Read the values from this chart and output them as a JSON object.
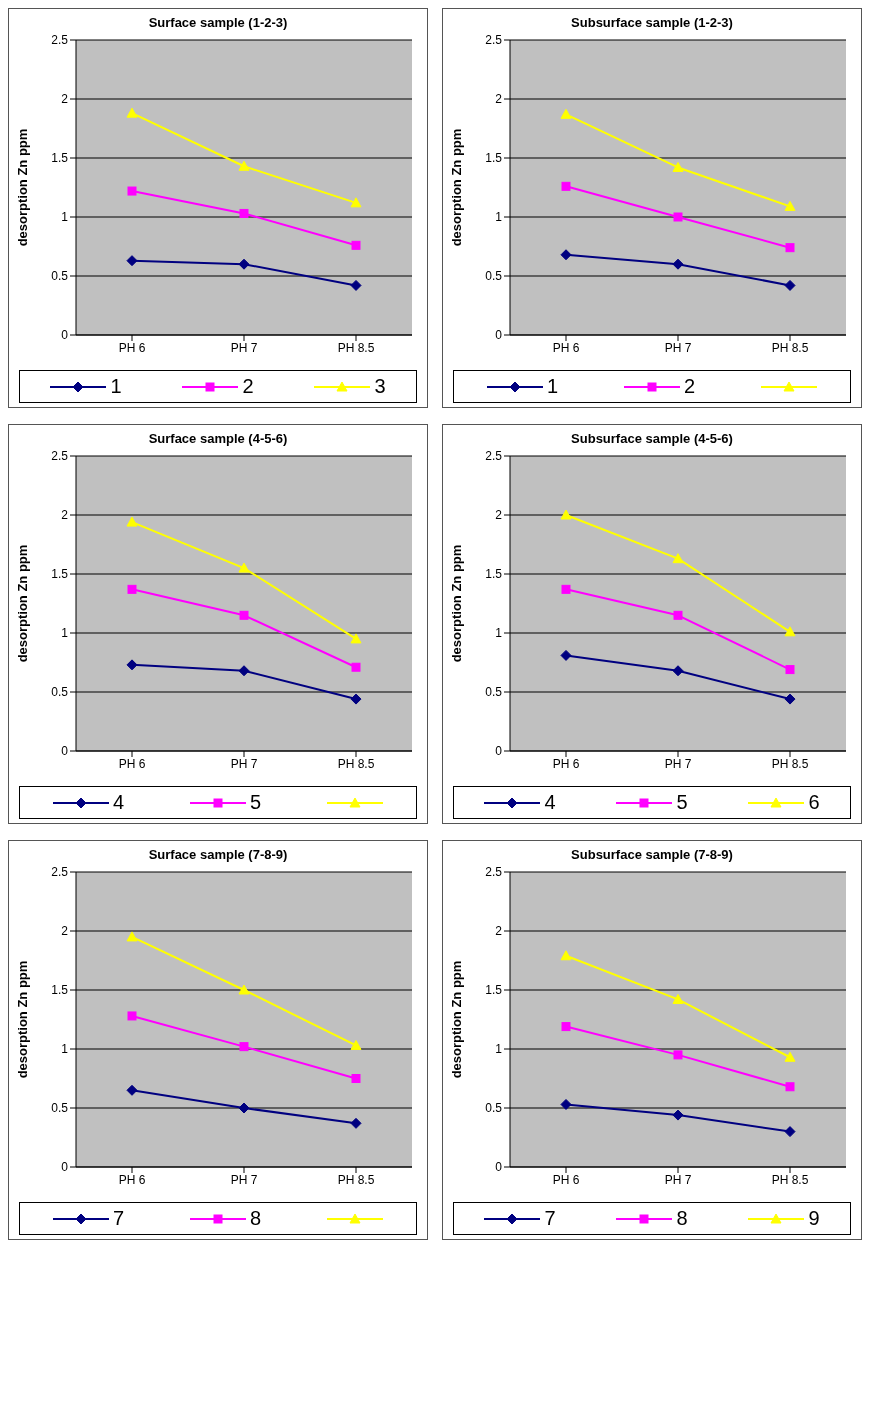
{
  "chart_data": [
    {
      "type": "line",
      "title": "Surface sample (1-2-3)",
      "ylabel": "desorption Zn ppm",
      "categories": [
        "PH 6",
        "PH 7",
        "PH 8.5"
      ],
      "ylim": [
        0,
        2.5
      ],
      "yticks": [
        0,
        0.5,
        1,
        1.5,
        2,
        2.5
      ],
      "grid": "y",
      "legend": "bottom",
      "series": [
        {
          "name": "1",
          "color": "#000080",
          "marker": "diamond",
          "values": [
            0.63,
            0.6,
            0.42
          ]
        },
        {
          "name": "2",
          "color": "#ff00ff",
          "marker": "square",
          "values": [
            1.22,
            1.03,
            0.76
          ]
        },
        {
          "name": "3",
          "color": "#ffff00",
          "marker": "triangle",
          "values": [
            1.88,
            1.43,
            1.12
          ]
        }
      ]
    },
    {
      "type": "line",
      "title": "Subsurface sample (1-2-3)",
      "ylabel": "desorption Zn ppm",
      "categories": [
        "PH 6",
        "PH 7",
        "PH 8.5"
      ],
      "ylim": [
        0,
        2.5
      ],
      "yticks": [
        0,
        0.5,
        1,
        1.5,
        2,
        2.5
      ],
      "grid": "y",
      "legend": "bottom",
      "series": [
        {
          "name": "1",
          "color": "#000080",
          "marker": "diamond",
          "values": [
            0.68,
            0.6,
            0.42
          ]
        },
        {
          "name": "2",
          "color": "#ff00ff",
          "marker": "square",
          "values": [
            1.26,
            1.0,
            0.74
          ]
        },
        {
          "color": "#ffff00",
          "marker": "triangle",
          "values": [
            1.87,
            1.42,
            1.09
          ]
        }
      ]
    },
    {
      "type": "line",
      "title": "Surface sample (4-5-6)",
      "ylabel": "desorption Zn ppm",
      "categories": [
        "PH 6",
        "PH 7",
        "PH 8.5"
      ],
      "ylim": [
        0,
        2.5
      ],
      "yticks": [
        0,
        0.5,
        1,
        1.5,
        2,
        2.5
      ],
      "grid": "y",
      "legend": "bottom",
      "series": [
        {
          "name": "4",
          "color": "#000080",
          "marker": "diamond",
          "values": [
            0.73,
            0.68,
            0.44
          ]
        },
        {
          "name": "5",
          "color": "#ff00ff",
          "marker": "square",
          "values": [
            1.37,
            1.15,
            0.71
          ]
        },
        {
          "color": "#ffff00",
          "marker": "triangle",
          "values": [
            1.94,
            1.55,
            0.95
          ]
        }
      ]
    },
    {
      "type": "line",
      "title": "Subsurface sample (4-5-6)",
      "ylabel": "desorption Zn ppm",
      "categories": [
        "PH 6",
        "PH 7",
        "PH 8.5"
      ],
      "ylim": [
        0,
        2.5
      ],
      "yticks": [
        0,
        0.5,
        1,
        1.5,
        2,
        2.5
      ],
      "grid": "y",
      "legend": "bottom",
      "series": [
        {
          "name": "4",
          "color": "#000080",
          "marker": "diamond",
          "values": [
            0.81,
            0.68,
            0.44
          ]
        },
        {
          "name": "5",
          "color": "#ff00ff",
          "marker": "square",
          "values": [
            1.37,
            1.15,
            0.69
          ]
        },
        {
          "name": "6",
          "color": "#ffff00",
          "marker": "triangle",
          "values": [
            2.0,
            1.63,
            1.01
          ]
        }
      ]
    },
    {
      "type": "line",
      "title": "Surface sample (7-8-9)",
      "ylabel": "desorption Zn ppm",
      "categories": [
        "PH 6",
        "PH 7",
        "PH 8.5"
      ],
      "ylim": [
        0,
        2.5
      ],
      "yticks": [
        0,
        0.5,
        1,
        1.5,
        2,
        2.5
      ],
      "grid": "y",
      "legend": "bottom",
      "series": [
        {
          "name": "7",
          "color": "#000080",
          "marker": "diamond",
          "values": [
            0.65,
            0.5,
            0.37
          ]
        },
        {
          "name": "8",
          "color": "#ff00ff",
          "marker": "square",
          "values": [
            1.28,
            1.02,
            0.75
          ]
        },
        {
          "color": "#ffff00",
          "marker": "triangle",
          "values": [
            1.95,
            1.5,
            1.03
          ]
        }
      ]
    },
    {
      "type": "line",
      "title": "Subsurface sample (7-8-9)",
      "ylabel": "desorption Zn ppm",
      "categories": [
        "PH 6",
        "PH 7",
        "PH 8.5"
      ],
      "ylim": [
        0,
        2.5
      ],
      "yticks": [
        0,
        0.5,
        1,
        1.5,
        2,
        2.5
      ],
      "grid": "y",
      "legend": "bottom",
      "series": [
        {
          "name": "7",
          "color": "#000080",
          "marker": "diamond",
          "values": [
            0.53,
            0.44,
            0.3
          ]
        },
        {
          "name": "8",
          "color": "#ff00ff",
          "marker": "square",
          "values": [
            1.19,
            0.95,
            0.68
          ]
        },
        {
          "name": "9",
          "color": "#ffff00",
          "marker": "triangle",
          "values": [
            1.79,
            1.42,
            0.93
          ]
        }
      ]
    }
  ]
}
